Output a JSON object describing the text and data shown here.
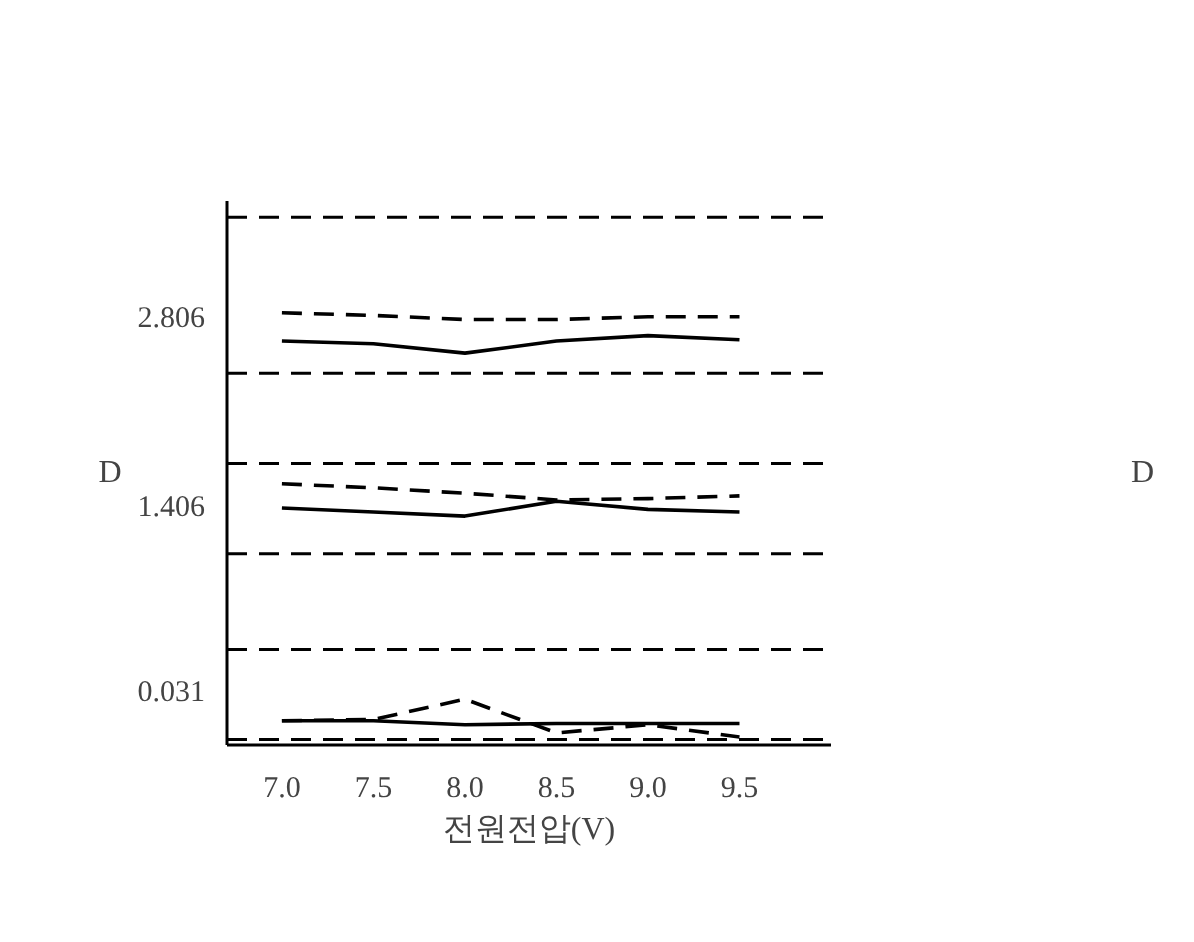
{
  "chart_data": {
    "type": "line",
    "xlabel": "전원전압(V)",
    "ylabel": "D",
    "annotations": [
      "D"
    ],
    "x": [
      7.0,
      7.5,
      8.0,
      8.5,
      9.0,
      9.5
    ],
    "series": [
      {
        "color": "#000000",
        "line_style": "dashed",
        "values": [
          2.84,
          2.82,
          2.79,
          2.79,
          2.81,
          2.81
        ]
      },
      {
        "color": "#000000",
        "line_style": "solid",
        "values": [
          2.63,
          2.61,
          2.54,
          2.63,
          2.67,
          2.64
        ]
      },
      {
        "color": "#000000",
        "line_style": "dashed",
        "values": [
          1.57,
          1.54,
          1.5,
          1.45,
          1.46,
          1.48
        ]
      },
      {
        "color": "#000000",
        "line_style": "solid",
        "values": [
          1.39,
          1.36,
          1.33,
          1.44,
          1.38,
          1.36
        ]
      },
      {
        "color": "#000000",
        "line_style": "dashed",
        "values": [
          -0.19,
          -0.18,
          -0.03,
          -0.28,
          -0.22,
          -0.31
        ]
      },
      {
        "color": "#000000",
        "line_style": "solid",
        "values": [
          -0.19,
          -0.19,
          -0.22,
          -0.21,
          -0.21,
          -0.21
        ]
      }
    ],
    "ref_lines": [
      {
        "axis": "y",
        "value": 3.55,
        "line_style": "dashed",
        "color": "#000000"
      },
      {
        "axis": "y",
        "value": 2.39,
        "line_style": "dashed",
        "color": "#000000"
      },
      {
        "axis": "y",
        "value": 1.72,
        "line_style": "dashed",
        "color": "#000000"
      },
      {
        "axis": "y",
        "value": 1.05,
        "line_style": "dashed",
        "color": "#000000"
      },
      {
        "axis": "y",
        "value": 0.34,
        "line_style": "dashed",
        "color": "#000000"
      },
      {
        "axis": "y",
        "value": -0.33,
        "line_style": "dashed",
        "color": "#000000"
      }
    ],
    "xlim": [
      6.7,
      10.0
    ],
    "ylim": [
      -0.37,
      3.67
    ],
    "xticks": [
      {
        "value": 7.0,
        "label": "7.0"
      },
      {
        "value": 7.5,
        "label": "7.5"
      },
      {
        "value": 8.0,
        "label": "8.0"
      },
      {
        "value": 8.5,
        "label": "8.5"
      },
      {
        "value": 9.0,
        "label": "9.0"
      },
      {
        "value": 9.5,
        "label": "9.5"
      }
    ],
    "yticks": [
      2.806,
      1.406,
      0.031
    ],
    "grid": false,
    "marker": "none"
  }
}
